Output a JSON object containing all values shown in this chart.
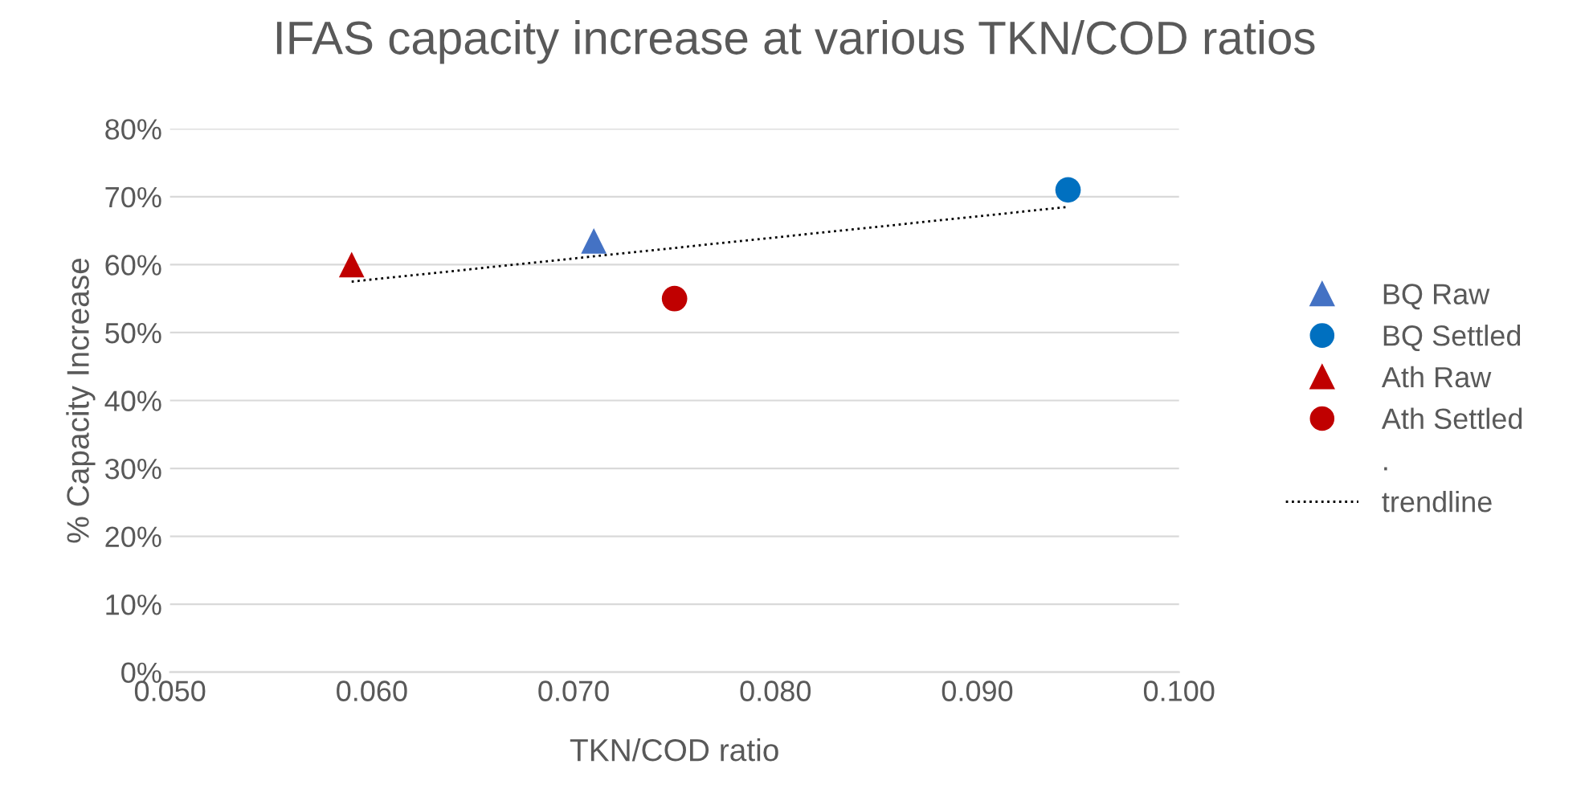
{
  "chart_data": {
    "type": "scatter",
    "title": "IFAS capacity increase at various TKN/COD ratios",
    "xlabel": "TKN/COD ratio",
    "ylabel": "% Capacity Increase",
    "series": [
      {
        "name": "BQ Raw",
        "color": "#4472c4",
        "marker": "triangle",
        "x": [
          0.071
        ],
        "values": [
          63.5
        ]
      },
      {
        "name": "BQ Settled",
        "color": "#0070c0",
        "marker": "circle",
        "x": [
          0.0945
        ],
        "values": [
          71
        ]
      },
      {
        "name": "Ath Raw",
        "color": "#c00000",
        "marker": "triangle",
        "x": [
          0.059
        ],
        "values": [
          60
        ]
      },
      {
        "name": "Ath Settled",
        "color": "#c00000",
        "marker": "circle",
        "x": [
          0.075
        ],
        "values": [
          55
        ]
      },
      {
        "name": ".",
        "marker": "none"
      },
      {
        "name": "trendline",
        "type": "line",
        "color": "#000000",
        "line_style": "dotted",
        "marker": "none",
        "x": [
          0.059,
          0.0945
        ],
        "values": [
          57.5,
          68.5
        ]
      }
    ],
    "xlim": [
      0.05,
      0.1
    ],
    "xticks": [
      {
        "value": 0.05,
        "label": "0.050"
      },
      {
        "value": 0.06,
        "label": "0.060"
      },
      {
        "value": 0.07,
        "label": "0.070"
      },
      {
        "value": 0.08,
        "label": "0.080"
      },
      {
        "value": 0.09,
        "label": "0.090"
      },
      {
        "value": 0.1,
        "label": "0.100"
      }
    ],
    "ylim": [
      0,
      80
    ],
    "yticks": [
      {
        "value": 0,
        "label": "0%"
      },
      {
        "value": 10,
        "label": "10%"
      },
      {
        "value": 20,
        "label": "20%"
      },
      {
        "value": 30,
        "label": "30%"
      },
      {
        "value": 40,
        "label": "40%"
      },
      {
        "value": 50,
        "label": "50%"
      },
      {
        "value": 60,
        "label": "60%"
      },
      {
        "value": 70,
        "label": "70%"
      },
      {
        "value": 80,
        "label": "80%"
      }
    ],
    "grid": "y",
    "legend": "right"
  }
}
